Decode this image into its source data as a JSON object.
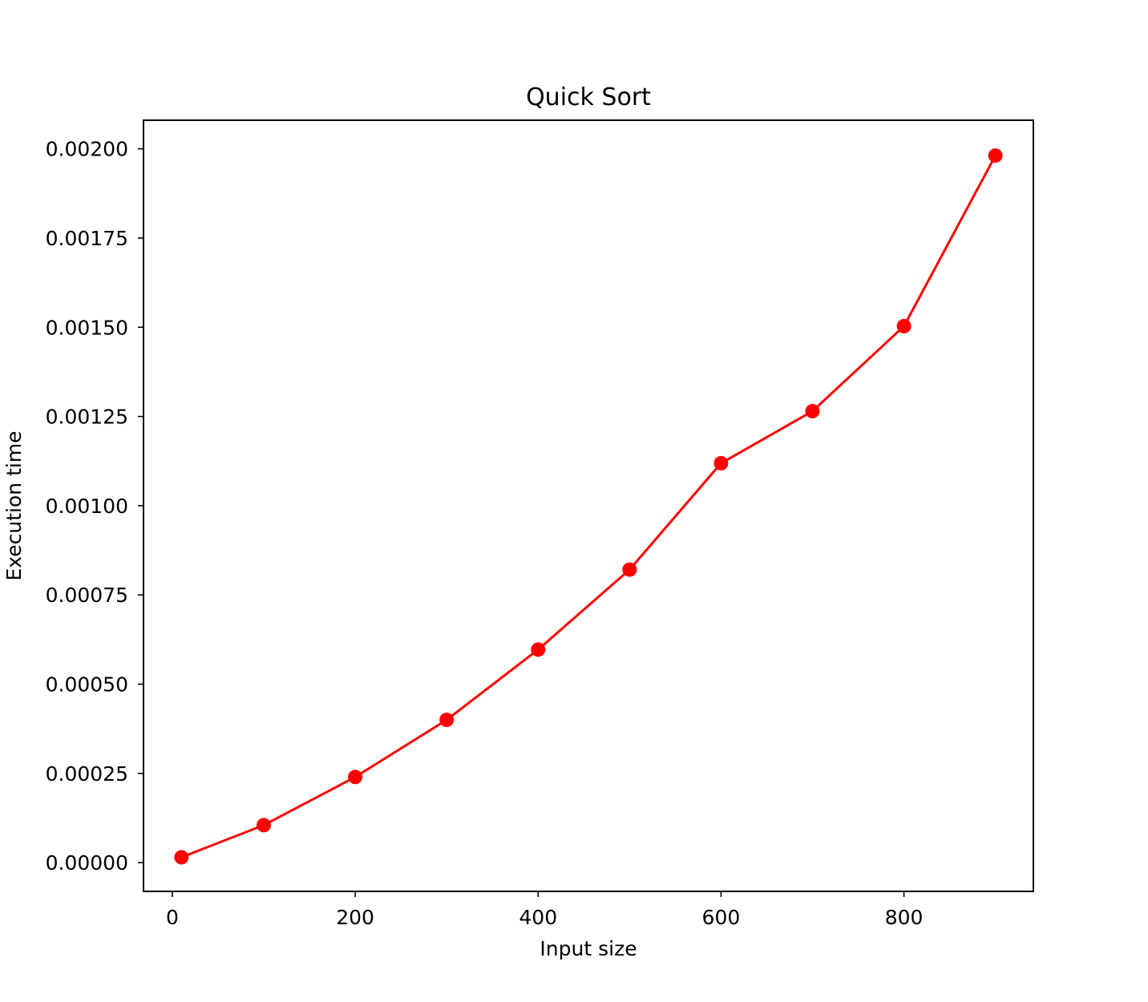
{
  "chart_data": {
    "type": "line",
    "title": "Quick Sort",
    "xlabel": "Input size",
    "ylabel": "Execution time",
    "x": [
      10,
      100,
      200,
      300,
      400,
      500,
      600,
      700,
      800,
      900
    ],
    "series": [
      {
        "values": [
          1.5e-05,
          0.000105,
          0.00024,
          0.0004,
          0.000597,
          0.000821,
          0.001119,
          0.001265,
          0.001503,
          0.001981
        ]
      }
    ],
    "xlim": [
      -31.5,
      941.5
    ],
    "ylim": [
      -8.05e-05,
      0.00208
    ],
    "xticks": [
      0,
      200,
      400,
      600,
      800
    ],
    "xtick_labels": [
      "0",
      "200",
      "400",
      "600",
      "800"
    ],
    "yticks": [
      0,
      0.00025,
      0.0005,
      0.00075,
      0.001,
      0.00125,
      0.0015,
      0.00175,
      0.002
    ],
    "ytick_labels": [
      "0.00000",
      "0.00025",
      "0.00050",
      "0.00075",
      "0.00100",
      "0.00125",
      "0.00150",
      "0.00175",
      "0.00200"
    ],
    "grid": false,
    "colors": {
      "line": "#ff0000",
      "marker": "#ff0000"
    },
    "marker": "circle"
  }
}
